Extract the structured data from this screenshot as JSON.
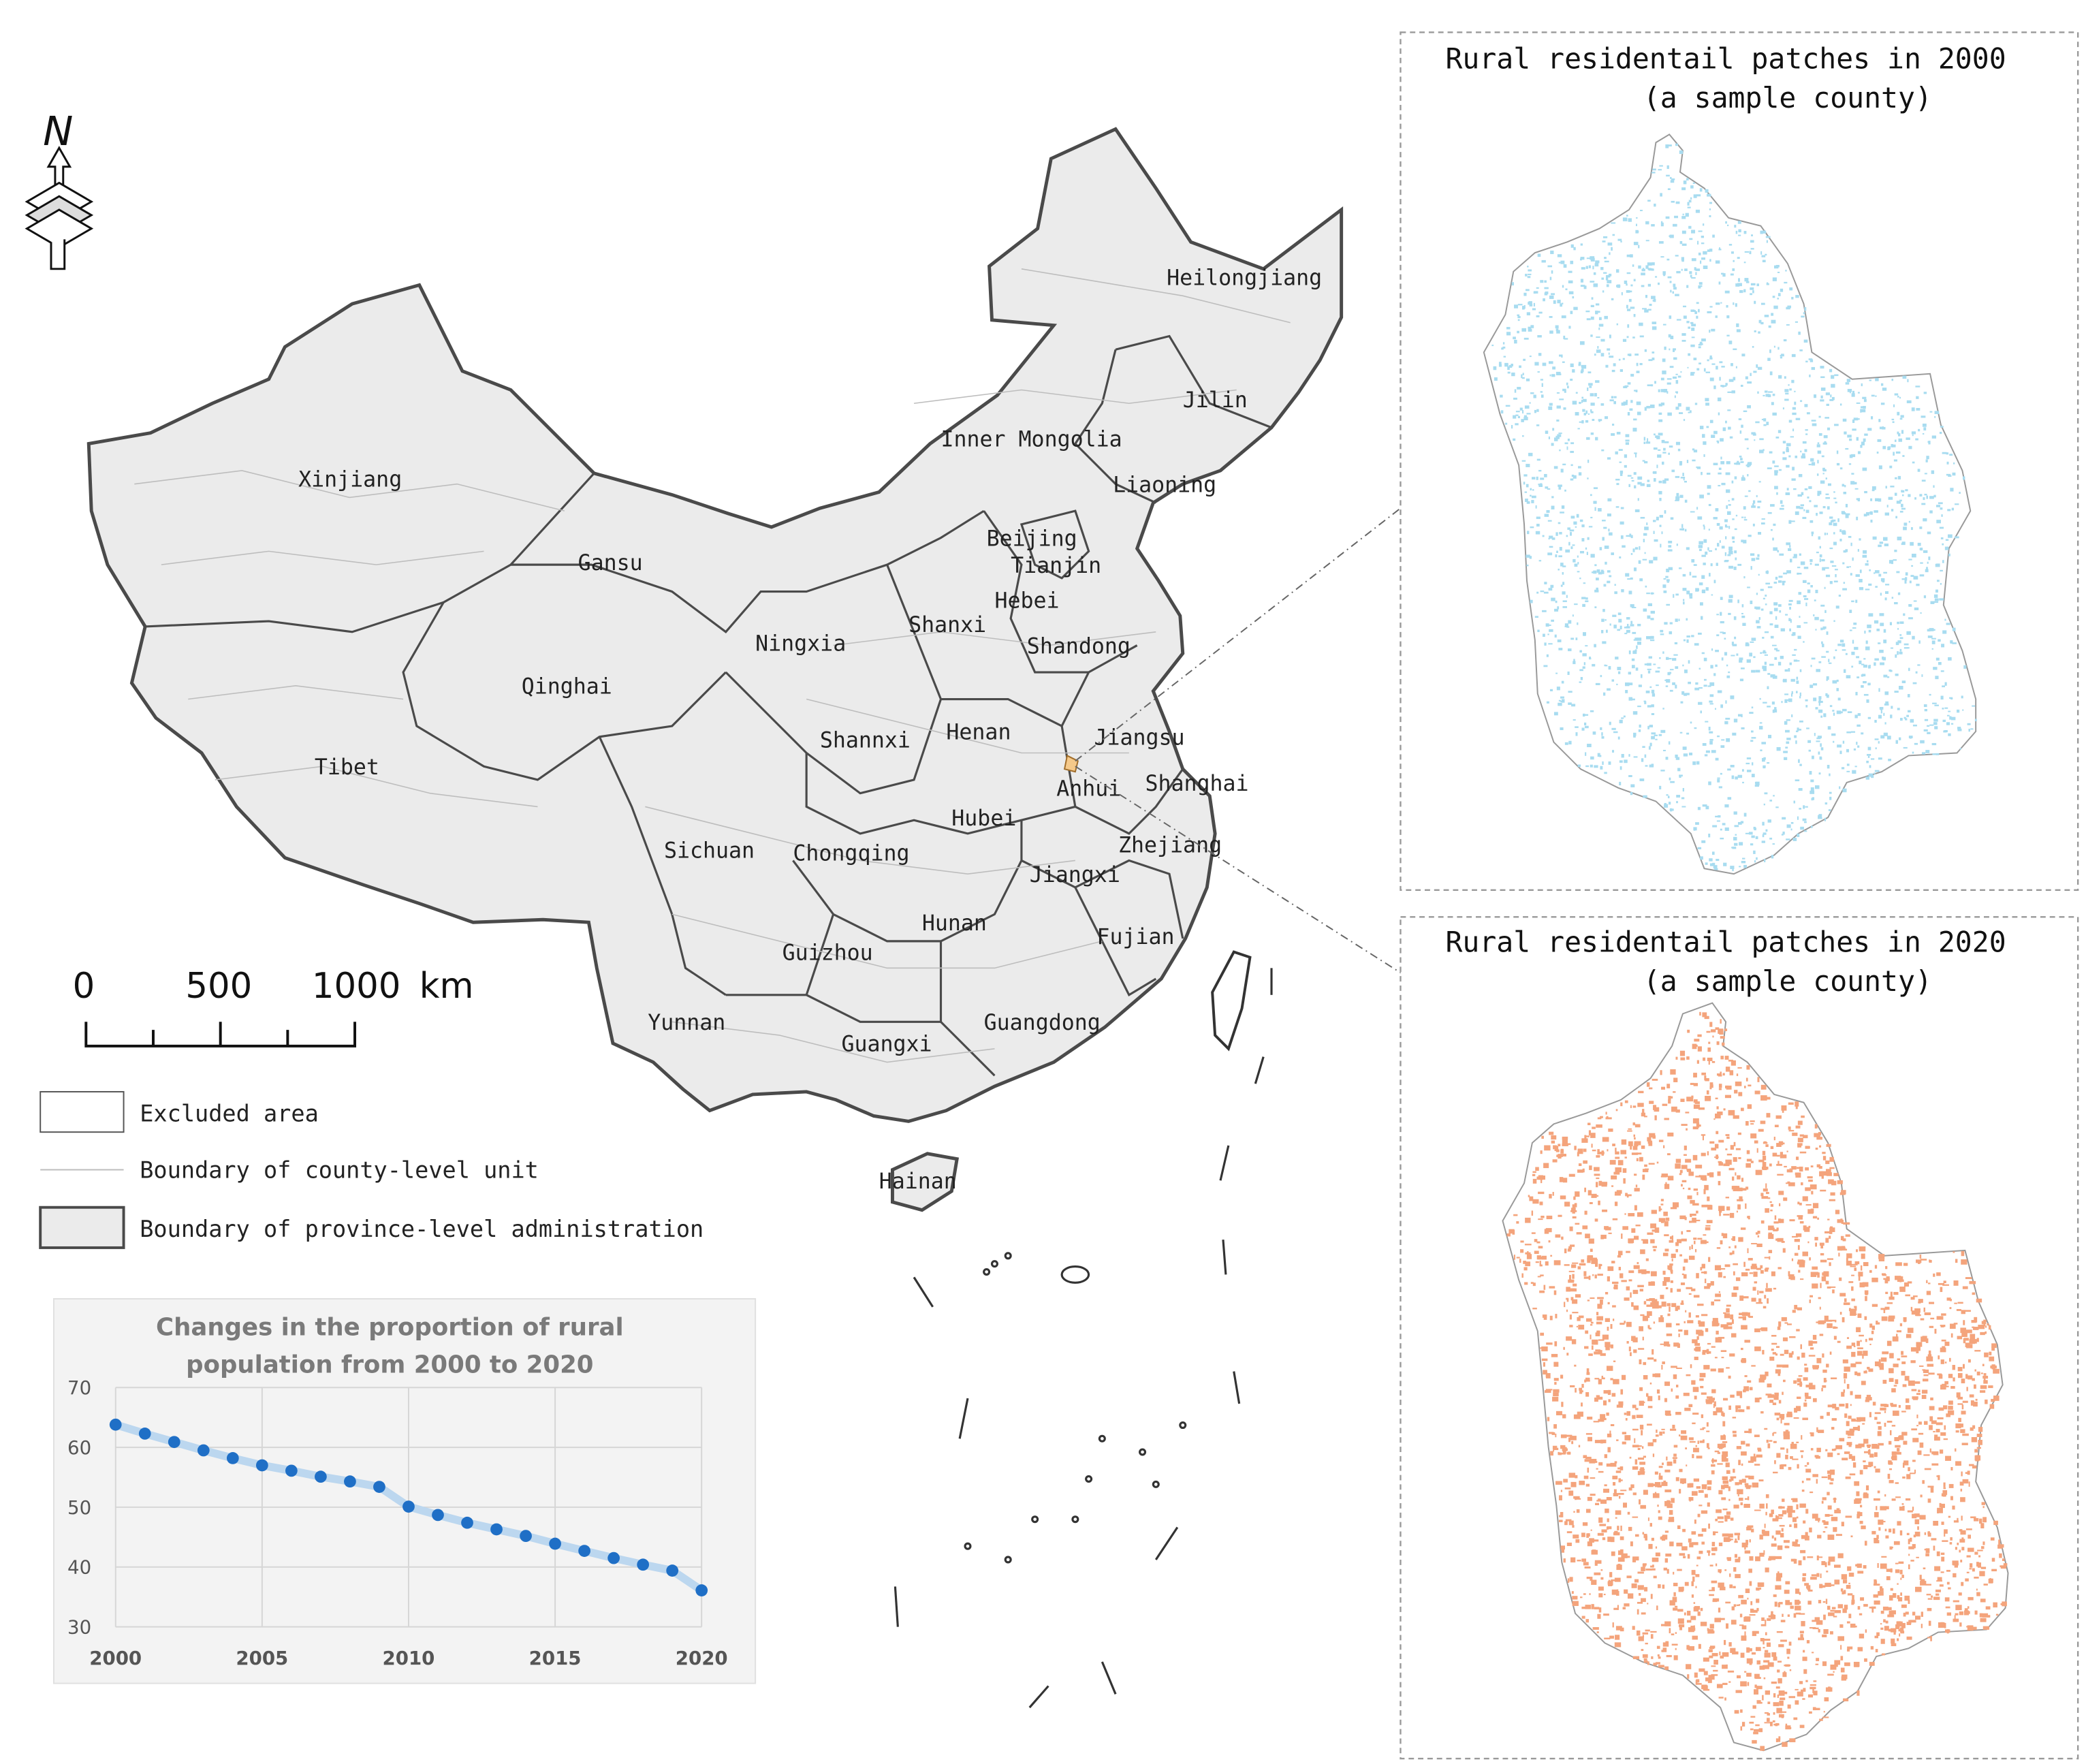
{
  "map": {
    "north_label": "N",
    "provinces": [
      {
        "name": "Heilongjiang"
      },
      {
        "name": "Jilin"
      },
      {
        "name": "Inner Mongolia"
      },
      {
        "name": "Liaoning"
      },
      {
        "name": "Xinjiang"
      },
      {
        "name": "Gansu"
      },
      {
        "name": "Beijing"
      },
      {
        "name": "Tianjin"
      },
      {
        "name": "Hebei"
      },
      {
        "name": "Shanxi"
      },
      {
        "name": "Ningxia"
      },
      {
        "name": "Shandong"
      },
      {
        "name": "Qinghai"
      },
      {
        "name": "Tibet"
      },
      {
        "name": "Shannxi"
      },
      {
        "name": "Henan"
      },
      {
        "name": "Jiangsu"
      },
      {
        "name": "Anhui"
      },
      {
        "name": "Shanghai"
      },
      {
        "name": "Hubei"
      },
      {
        "name": "Sichuan"
      },
      {
        "name": "Chongqing"
      },
      {
        "name": "Zhejiang"
      },
      {
        "name": "Jiangxi"
      },
      {
        "name": "Hunan"
      },
      {
        "name": "Guizhou"
      },
      {
        "name": "Fujian"
      },
      {
        "name": "Yunnan"
      },
      {
        "name": "Guangdong"
      },
      {
        "name": "Guangxi"
      },
      {
        "name": "Hainan"
      }
    ],
    "colors": {
      "land": "#ebebeb",
      "province_border": "#4a4a4a",
      "county_border": "#bdbdbd",
      "sample_county": "#f5c98a"
    }
  },
  "scale_bar": {
    "labels": [
      "0",
      "500",
      "1000"
    ],
    "unit": "km"
  },
  "legend": {
    "items": [
      {
        "label": "Excluded area"
      },
      {
        "label": "Boundary of county-level unit"
      },
      {
        "label": "Boundary of province-level administration"
      }
    ]
  },
  "insets": [
    {
      "title_line1": "Rural residentail patches in 2000",
      "title_line2": "(a sample county)",
      "patch_color": "#a8dcf0"
    },
    {
      "title_line1": "Rural residentail patches in 2020",
      "title_line2": "(a sample county)",
      "patch_color": "#f4a47c"
    }
  ],
  "chart_data": {
    "type": "line",
    "title": "Changes in the proportion of rural population from 2000 to 2020",
    "title_line1": "Changes in the proportion of rural",
    "title_line2": "population from 2000 to 2020",
    "x": [
      2000,
      2001,
      2002,
      2003,
      2004,
      2005,
      2006,
      2007,
      2008,
      2009,
      2010,
      2011,
      2012,
      2013,
      2014,
      2015,
      2016,
      2017,
      2018,
      2019,
      2020
    ],
    "series": [
      {
        "values": [
          63.8,
          62.3,
          60.9,
          59.5,
          58.2,
          57.0,
          56.1,
          55.1,
          54.3,
          53.4,
          50.1,
          48.7,
          47.4,
          46.3,
          45.2,
          43.9,
          42.7,
          41.5,
          40.4,
          39.4,
          36.1
        ]
      }
    ],
    "xticks": [
      2000,
      2005,
      2010,
      2015,
      2020
    ],
    "yticks": [
      30,
      40,
      50,
      60,
      70
    ],
    "ylim": [
      30,
      70
    ],
    "xlim": [
      2000,
      2020
    ],
    "grid": true,
    "line_color": "#bcd7ef",
    "marker_color": "#1f6fc6"
  }
}
